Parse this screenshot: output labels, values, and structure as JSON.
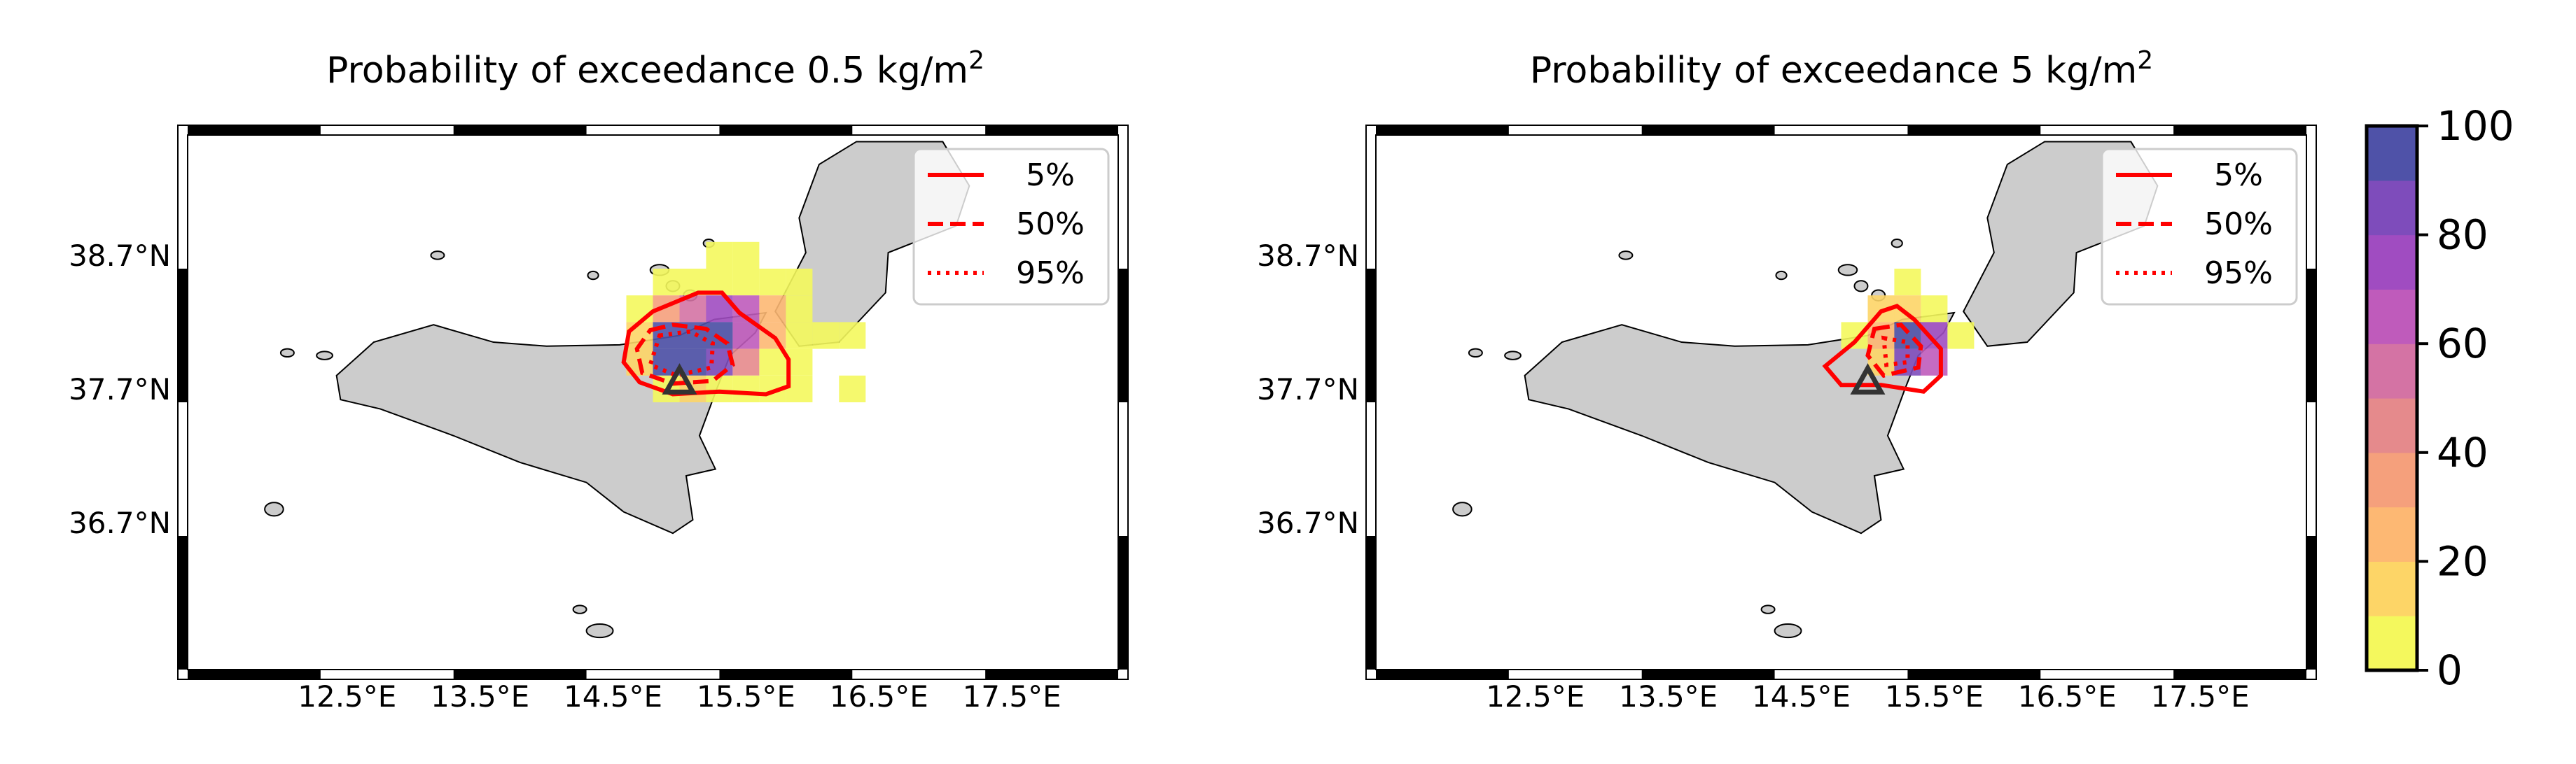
{
  "chart_data": [
    {
      "type": "heatmap",
      "title": "Probability of exceedance 0.5 kg/m",
      "title_superscript": "2",
      "xlabel": "",
      "ylabel": "",
      "xlim": [
        11.3,
        18.3
      ],
      "ylim": [
        35.6,
        39.6
      ],
      "x_ticks": [
        "12.5°E",
        "13.5°E",
        "14.5°E",
        "15.5°E",
        "16.5°E",
        "17.5°E"
      ],
      "x_tick_values": [
        12.5,
        13.5,
        14.5,
        15.5,
        16.5,
        17.5
      ],
      "y_ticks": [
        "38.7°N",
        "37.7°N",
        "36.7°N"
      ],
      "y_tick_values": [
        38.7,
        37.7,
        36.7
      ],
      "grid": false,
      "legend_position": "top-right",
      "legend": [
        "5%",
        "50%",
        "95%"
      ],
      "cells": [
        [
          15.2,
          38.6,
          3
        ],
        [
          15.4,
          38.6,
          3
        ],
        [
          14.8,
          38.4,
          3
        ],
        [
          15.0,
          38.4,
          5
        ],
        [
          15.2,
          38.4,
          5
        ],
        [
          15.4,
          38.4,
          5
        ],
        [
          15.6,
          38.4,
          3
        ],
        [
          15.8,
          38.4,
          3
        ],
        [
          14.6,
          38.2,
          8
        ],
        [
          14.8,
          38.2,
          30
        ],
        [
          15.0,
          38.2,
          55
        ],
        [
          15.2,
          38.2,
          70
        ],
        [
          15.4,
          38.2,
          60
        ],
        [
          15.6,
          38.2,
          20
        ],
        [
          15.8,
          38.2,
          5
        ],
        [
          14.6,
          38.0,
          15
        ],
        [
          14.8,
          38.0,
          95
        ],
        [
          15.0,
          38.0,
          95
        ],
        [
          15.2,
          38.0,
          92
        ],
        [
          15.4,
          38.0,
          65
        ],
        [
          15.6,
          38.0,
          20
        ],
        [
          15.8,
          38.0,
          5
        ],
        [
          16.0,
          38.0,
          3
        ],
        [
          16.2,
          38.0,
          3
        ],
        [
          14.6,
          37.8,
          10
        ],
        [
          14.8,
          37.8,
          90
        ],
        [
          15.0,
          37.8,
          95
        ],
        [
          15.2,
          37.8,
          85
        ],
        [
          15.4,
          37.8,
          40
        ],
        [
          15.6,
          37.8,
          8
        ],
        [
          15.8,
          37.8,
          3
        ],
        [
          14.8,
          37.6,
          5
        ],
        [
          15.0,
          37.6,
          10
        ],
        [
          15.2,
          37.6,
          8
        ],
        [
          15.4,
          37.6,
          5
        ],
        [
          15.6,
          37.6,
          3
        ],
        [
          15.8,
          37.6,
          3
        ],
        [
          16.2,
          37.6,
          3
        ]
      ],
      "vent": [
        15.0,
        37.75
      ]
    },
    {
      "type": "heatmap",
      "title": "Probability of exceedance 5 kg/m",
      "title_superscript": "2",
      "xlabel": "",
      "ylabel": "",
      "xlim": [
        11.3,
        18.3
      ],
      "ylim": [
        35.6,
        39.6
      ],
      "x_ticks": [
        "12.5°E",
        "13.5°E",
        "14.5°E",
        "15.5°E",
        "16.5°E",
        "17.5°E"
      ],
      "x_tick_values": [
        12.5,
        13.5,
        14.5,
        15.5,
        16.5,
        17.5
      ],
      "y_ticks": [
        "38.7°N",
        "37.7°N",
        "36.7°N"
      ],
      "y_tick_values": [
        38.7,
        37.7,
        36.7
      ],
      "grid": false,
      "legend_position": "top-right",
      "legend": [
        "5%",
        "50%",
        "95%"
      ],
      "cells": [
        [
          15.2,
          38.4,
          3
        ],
        [
          15.0,
          38.2,
          10
        ],
        [
          15.2,
          38.2,
          10
        ],
        [
          15.4,
          38.2,
          5
        ],
        [
          14.8,
          38.0,
          5
        ],
        [
          15.0,
          38.0,
          25
        ],
        [
          15.2,
          38.0,
          95
        ],
        [
          15.4,
          38.0,
          70
        ],
        [
          15.6,
          38.0,
          5
        ],
        [
          15.0,
          37.8,
          15
        ],
        [
          15.2,
          37.8,
          85
        ],
        [
          15.4,
          37.8,
          60
        ]
      ],
      "vent": [
        15.0,
        37.75
      ]
    }
  ],
  "colorbar": {
    "ticks": [
      "0",
      "20",
      "40",
      "60",
      "80",
      "100"
    ],
    "tick_values": [
      0,
      20,
      40,
      60,
      80,
      100
    ],
    "colors": [
      "#f4f85d",
      "#fdd567",
      "#fdb873",
      "#f5a07c",
      "#e58a8c",
      "#d473a4",
      "#bf5bbb",
      "#a04cc1",
      "#7e4cbb",
      "#4f52a8"
    ]
  },
  "colors": {
    "land": "#cccccc",
    "contour": "#ff0000",
    "vent": "#333333"
  }
}
